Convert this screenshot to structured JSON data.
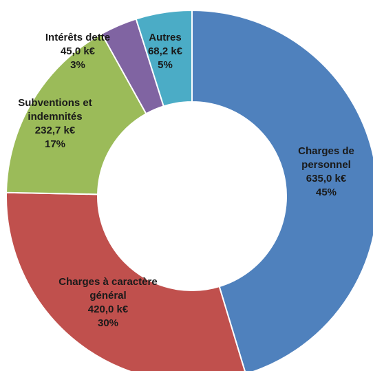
{
  "chart_data": {
    "type": "donut",
    "categories": [
      "Charges de personnel",
      "Charges à caractère général",
      "Subventions et indemnités",
      "Intérêts dette",
      "Autres"
    ],
    "values": [
      635.0,
      420.0,
      232.7,
      45.0,
      68.2
    ],
    "value_labels": [
      "635,0 k€",
      "420,0 k€",
      "232,7 k€",
      "45,0 k€",
      "68,2 k€"
    ],
    "percentages": [
      45,
      30,
      17,
      3,
      5
    ],
    "percentage_labels": [
      "45%",
      "30%",
      "17%",
      "3%",
      "5%"
    ],
    "colors": [
      "#4f81bd",
      "#c0504d",
      "#9bbb59",
      "#8064a2",
      "#4bacc6"
    ]
  }
}
